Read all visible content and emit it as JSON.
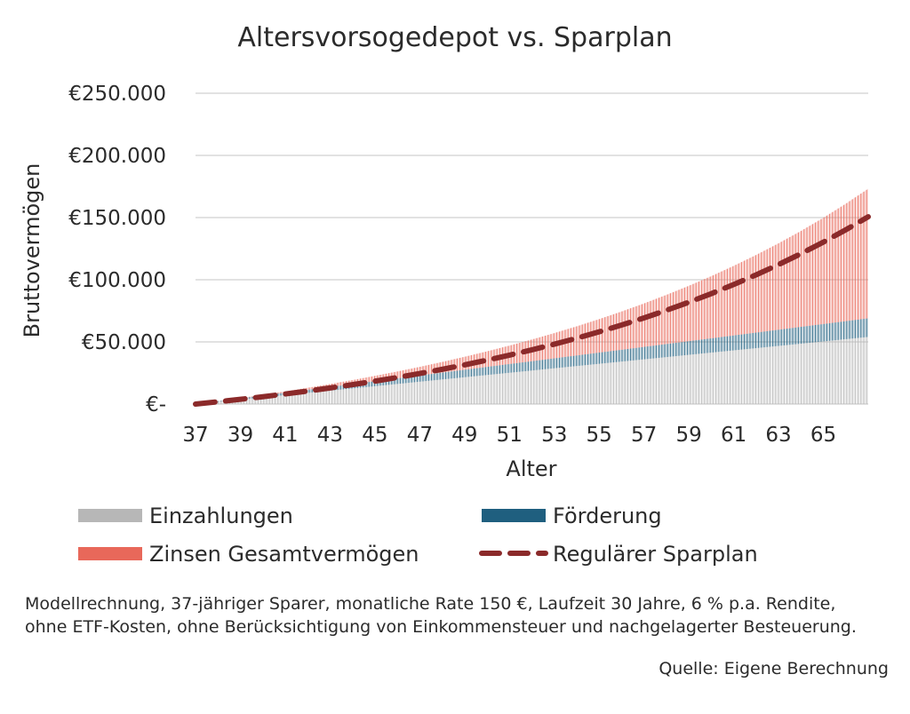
{
  "chart_data": {
    "type": "area",
    "title": "Altersvorsogedepot vs. Sparplan",
    "xlabel": "Alter",
    "ylabel": "Bruttovermögen",
    "x_start": 37,
    "x_end": 67,
    "x_ticks": [
      "37",
      "39",
      "41",
      "43",
      "45",
      "47",
      "49",
      "51",
      "53",
      "55",
      "57",
      "59",
      "61",
      "63",
      "65"
    ],
    "y_ticks": [
      "€-",
      "€50.000",
      "€100.000",
      "€150.000",
      "€200.000",
      "€250.000"
    ],
    "ylim": [
      0,
      250000
    ],
    "grid": true,
    "legend_position": "bottom",
    "x": [
      37,
      38,
      39,
      40,
      41,
      42,
      43,
      44,
      45,
      46,
      47,
      48,
      49,
      50,
      51,
      52,
      53,
      54,
      55,
      56,
      57,
      58,
      59,
      60,
      61,
      62,
      63,
      64,
      65,
      66,
      67
    ],
    "series": [
      {
        "name": "Einzahlungen",
        "style": "stacked-area",
        "color": "#b7b7b7",
        "values": [
          0,
          1800,
          3600,
          5400,
          7200,
          9000,
          10800,
          12600,
          14400,
          16200,
          18000,
          19800,
          21600,
          23400,
          25200,
          27000,
          28800,
          30600,
          32400,
          34200,
          36000,
          37800,
          39600,
          41400,
          43200,
          45000,
          46800,
          48600,
          50400,
          52200,
          54000
        ]
      },
      {
        "name": "Förderung",
        "style": "stacked-area",
        "color": "#1f5f7f",
        "values": [
          0,
          500,
          1000,
          1500,
          2000,
          2500,
          3000,
          3500,
          4000,
          4500,
          5000,
          5500,
          6000,
          6500,
          7000,
          7500,
          8000,
          8500,
          9000,
          9500,
          10000,
          10500,
          11000,
          11500,
          12000,
          12500,
          13000,
          13500,
          14000,
          14500,
          15000
        ]
      },
      {
        "name": "Zinsen Gesamtvermögen",
        "style": "stacked-area",
        "color": "#e8685a",
        "values": [
          0,
          59,
          248,
          555,
          998,
          1584,
          2314,
          3214,
          4271,
          5505,
          6937,
          8577,
          10424,
          12501,
          14823,
          17414,
          20272,
          23436,
          26912,
          30741,
          34930,
          39514,
          44521,
          49986,
          55944,
          62431,
          69478,
          77139,
          85448,
          94451,
          104207
        ]
      },
      {
        "name": "Regulärer Sparplan",
        "style": "dashed-line",
        "color": "#8b2a2a",
        "values": [
          0,
          1850,
          3814,
          5900,
          8114,
          10465,
          12960,
          15610,
          18423,
          21409,
          24580,
          27946,
          31520,
          35314,
          39342,
          43619,
          48159,
          52979,
          58097,
          63530,
          69299,
          75423,
          81925,
          88828,
          96157,
          103938,
          112198,
          120968,
          130279,
          140164,
          150659
        ]
      }
    ],
    "note": "Modellrechnung, 37-jähriger Sparer, monatliche Rate 150 €, Laufzeit 30 Jahre, 6 % p.a. Rendite, ohne ETF-Kosten, ohne Berücksichtigung von Einkommensteuer und nachgelagerter Besteuerung.",
    "source": "Quelle: Eigene Berechnung"
  }
}
